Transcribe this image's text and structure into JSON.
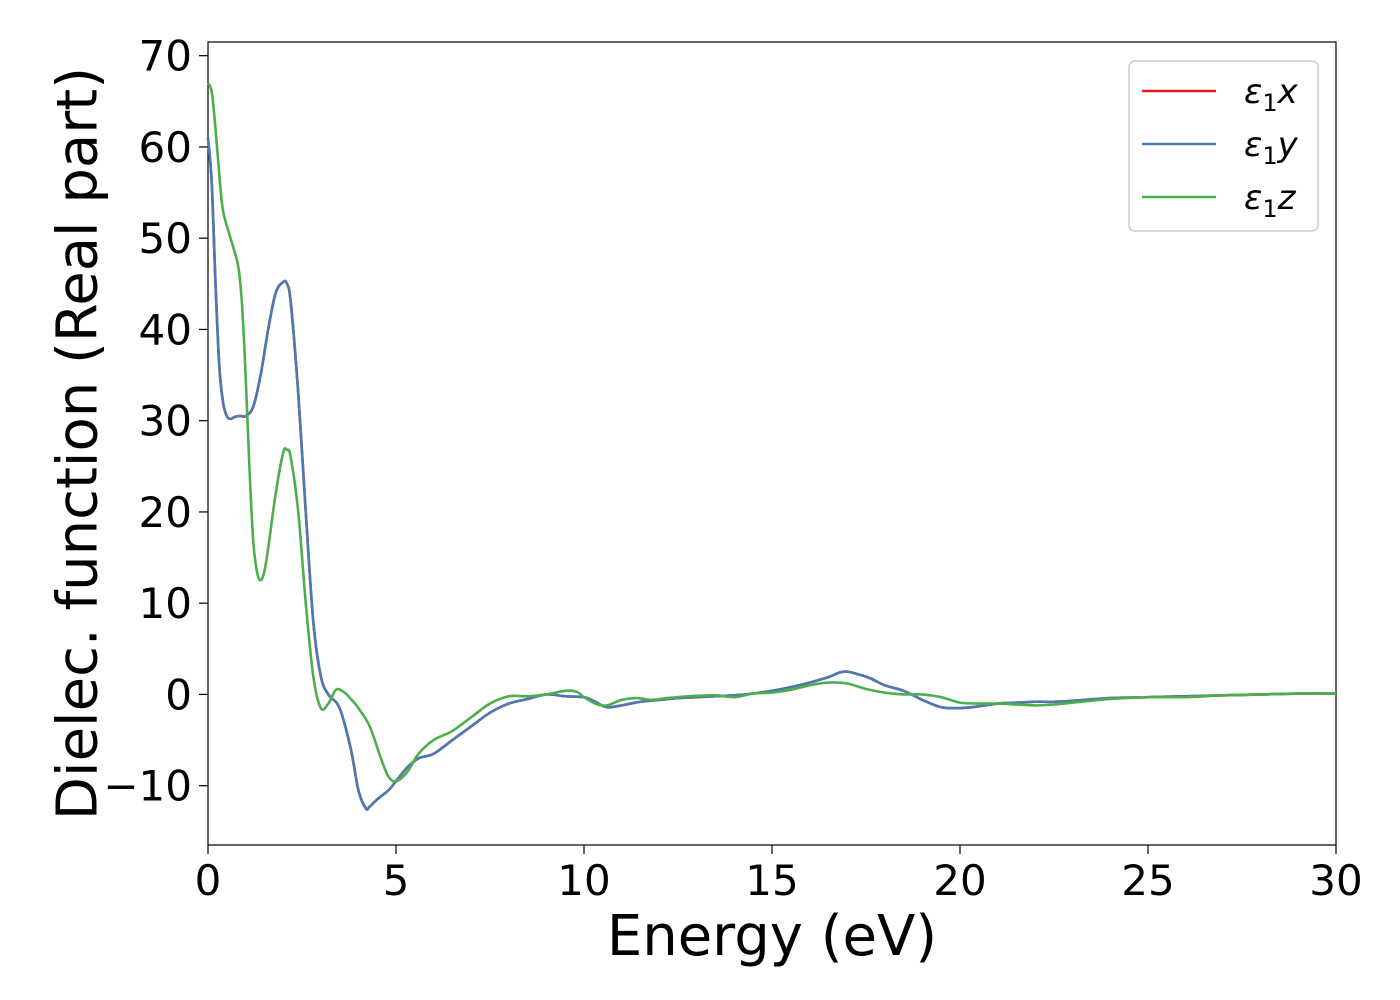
{
  "chart_data": {
    "type": "line",
    "xlabel": "Energy (eV)",
    "ylabel": "Dielec. function (Real part)",
    "xlim": [
      0,
      30
    ],
    "ylim": [
      -16.5,
      71.5
    ],
    "xticks": [
      0,
      5,
      10,
      15,
      20,
      25,
      30
    ],
    "xtick_labels": [
      "0",
      "5",
      "10",
      "15",
      "20",
      "25",
      "30"
    ],
    "yticks": [
      -10,
      0,
      10,
      20,
      30,
      40,
      50,
      60,
      70
    ],
    "ytick_labels": [
      "−10",
      "0",
      "10",
      "20",
      "30",
      "40",
      "50",
      "60",
      "70"
    ],
    "grid": false,
    "legend_position": "top-right",
    "series": [
      {
        "name": "ε",
        "subscript": "1",
        "suffix": "x",
        "color": "#e41a1c",
        "x": [
          0.0,
          0.1,
          0.2,
          0.3,
          0.4,
          0.5,
          0.6,
          0.7,
          0.8,
          0.9,
          1.0,
          1.2,
          1.4,
          1.6,
          1.8,
          2.0,
          2.1,
          2.2,
          2.4,
          2.6,
          2.8,
          3.0,
          3.2,
          3.5,
          3.8,
          4.0,
          4.2,
          4.3,
          4.5,
          4.8,
          5.0,
          5.3,
          5.6,
          6.0,
          6.5,
          7.0,
          7.5,
          8.0,
          8.5,
          9.0,
          9.5,
          10.0,
          10.3,
          10.6,
          11.0,
          11.5,
          12.0,
          12.5,
          13.0,
          13.5,
          14.0,
          14.5,
          15.0,
          15.5,
          16.0,
          16.5,
          16.8,
          17.0,
          17.3,
          17.6,
          18.0,
          18.5,
          19.0,
          19.5,
          20.0,
          20.5,
          21.0,
          21.5,
          22.0,
          22.5,
          23.0,
          24.0,
          25.0,
          26.0,
          27.0,
          28.0,
          29.0,
          30.0
        ],
        "y": [
          61.0,
          56.0,
          45.0,
          36.0,
          32.0,
          30.5,
          30.2,
          30.4,
          30.5,
          30.5,
          30.5,
          31.5,
          35.0,
          40.0,
          44.0,
          45.2,
          45.0,
          43.0,
          33.0,
          20.0,
          8.0,
          2.0,
          0.0,
          -1.5,
          -6.0,
          -10.5,
          -12.5,
          -12.3,
          -11.5,
          -10.5,
          -9.5,
          -8.0,
          -7.0,
          -6.5,
          -5.0,
          -3.5,
          -2.0,
          -1.0,
          -0.5,
          0.0,
          -0.2,
          -0.3,
          -0.8,
          -1.4,
          -1.2,
          -0.8,
          -0.6,
          -0.4,
          -0.3,
          -0.2,
          -0.1,
          0.1,
          0.4,
          0.8,
          1.3,
          1.9,
          2.4,
          2.5,
          2.2,
          1.8,
          1.0,
          0.4,
          -0.6,
          -1.4,
          -1.5,
          -1.3,
          -1.0,
          -0.9,
          -0.8,
          -0.8,
          -0.7,
          -0.4,
          -0.3,
          -0.2,
          -0.1,
          0.0,
          0.1,
          0.1
        ]
      },
      {
        "name": "ε",
        "subscript": "1",
        "suffix": "y",
        "color": "#4a7ab3",
        "x": [
          0.0,
          0.1,
          0.2,
          0.3,
          0.4,
          0.5,
          0.6,
          0.7,
          0.8,
          0.9,
          1.0,
          1.2,
          1.4,
          1.6,
          1.8,
          2.0,
          2.1,
          2.2,
          2.4,
          2.6,
          2.8,
          3.0,
          3.2,
          3.5,
          3.8,
          4.0,
          4.2,
          4.3,
          4.5,
          4.8,
          5.0,
          5.3,
          5.6,
          6.0,
          6.5,
          7.0,
          7.5,
          8.0,
          8.5,
          9.0,
          9.5,
          10.0,
          10.3,
          10.6,
          11.0,
          11.5,
          12.0,
          12.5,
          13.0,
          13.5,
          14.0,
          14.5,
          15.0,
          15.5,
          16.0,
          16.5,
          16.8,
          17.0,
          17.3,
          17.6,
          18.0,
          18.5,
          19.0,
          19.5,
          20.0,
          20.5,
          21.0,
          21.5,
          22.0,
          22.5,
          23.0,
          24.0,
          25.0,
          26.0,
          27.0,
          28.0,
          29.0,
          30.0
        ],
        "y": [
          61.0,
          56.0,
          45.0,
          36.0,
          32.0,
          30.5,
          30.2,
          30.4,
          30.5,
          30.5,
          30.5,
          31.5,
          35.0,
          40.0,
          44.0,
          45.2,
          45.0,
          43.0,
          33.0,
          20.0,
          8.0,
          2.0,
          0.0,
          -1.5,
          -6.0,
          -10.5,
          -12.5,
          -12.3,
          -11.5,
          -10.5,
          -9.5,
          -8.0,
          -7.0,
          -6.5,
          -5.0,
          -3.5,
          -2.0,
          -1.0,
          -0.5,
          0.0,
          -0.2,
          -0.3,
          -0.8,
          -1.4,
          -1.2,
          -0.8,
          -0.6,
          -0.4,
          -0.3,
          -0.2,
          -0.1,
          0.1,
          0.4,
          0.8,
          1.3,
          1.9,
          2.4,
          2.5,
          2.2,
          1.8,
          1.0,
          0.4,
          -0.6,
          -1.4,
          -1.5,
          -1.3,
          -1.0,
          -0.9,
          -0.8,
          -0.8,
          -0.7,
          -0.4,
          -0.3,
          -0.2,
          -0.1,
          0.0,
          0.1,
          0.1
        ]
      },
      {
        "name": "ε",
        "subscript": "1",
        "suffix": "z",
        "color": "#4daf4a",
        "x": [
          0.0,
          0.1,
          0.2,
          0.3,
          0.4,
          0.6,
          0.8,
          0.9,
          1.0,
          1.1,
          1.2,
          1.3,
          1.4,
          1.5,
          1.6,
          1.8,
          2.0,
          2.1,
          2.2,
          2.4,
          2.6,
          2.8,
          3.0,
          3.2,
          3.4,
          3.6,
          3.8,
          4.0,
          4.3,
          4.6,
          4.8,
          5.0,
          5.3,
          5.6,
          6.0,
          6.5,
          7.0,
          7.5,
          8.0,
          8.5,
          9.0,
          9.5,
          9.8,
          10.0,
          10.3,
          10.6,
          11.0,
          11.4,
          11.8,
          12.2,
          12.8,
          13.5,
          14.0,
          14.5,
          15.0,
          15.5,
          16.0,
          16.5,
          17.0,
          17.5,
          18.0,
          18.5,
          19.0,
          19.5,
          20.0,
          20.5,
          21.0,
          21.5,
          22.0,
          22.5,
          23.0,
          24.0,
          25.0,
          26.0,
          27.0,
          28.0,
          29.0,
          30.0
        ],
        "y": [
          67.0,
          66.0,
          62.0,
          57.0,
          53.0,
          50.0,
          47.0,
          43.0,
          35.0,
          25.0,
          17.0,
          13.5,
          12.5,
          13.5,
          16.0,
          22.0,
          26.5,
          26.8,
          26.0,
          20.0,
          10.0,
          2.0,
          -1.5,
          -1.0,
          0.5,
          0.3,
          -0.5,
          -1.5,
          -3.5,
          -7.0,
          -9.0,
          -9.5,
          -8.5,
          -6.5,
          -5.0,
          -4.0,
          -2.5,
          -1.0,
          -0.2,
          -0.2,
          0.0,
          0.4,
          0.3,
          -0.3,
          -1.0,
          -1.2,
          -0.6,
          -0.4,
          -0.6,
          -0.4,
          -0.2,
          -0.1,
          -0.3,
          0.1,
          0.2,
          0.5,
          1.0,
          1.3,
          1.2,
          0.6,
          0.2,
          0.0,
          0.0,
          -0.3,
          -0.9,
          -1.0,
          -1.0,
          -1.1,
          -1.2,
          -1.1,
          -0.9,
          -0.5,
          -0.3,
          -0.3,
          -0.1,
          0.0,
          0.1,
          0.1
        ]
      }
    ]
  }
}
